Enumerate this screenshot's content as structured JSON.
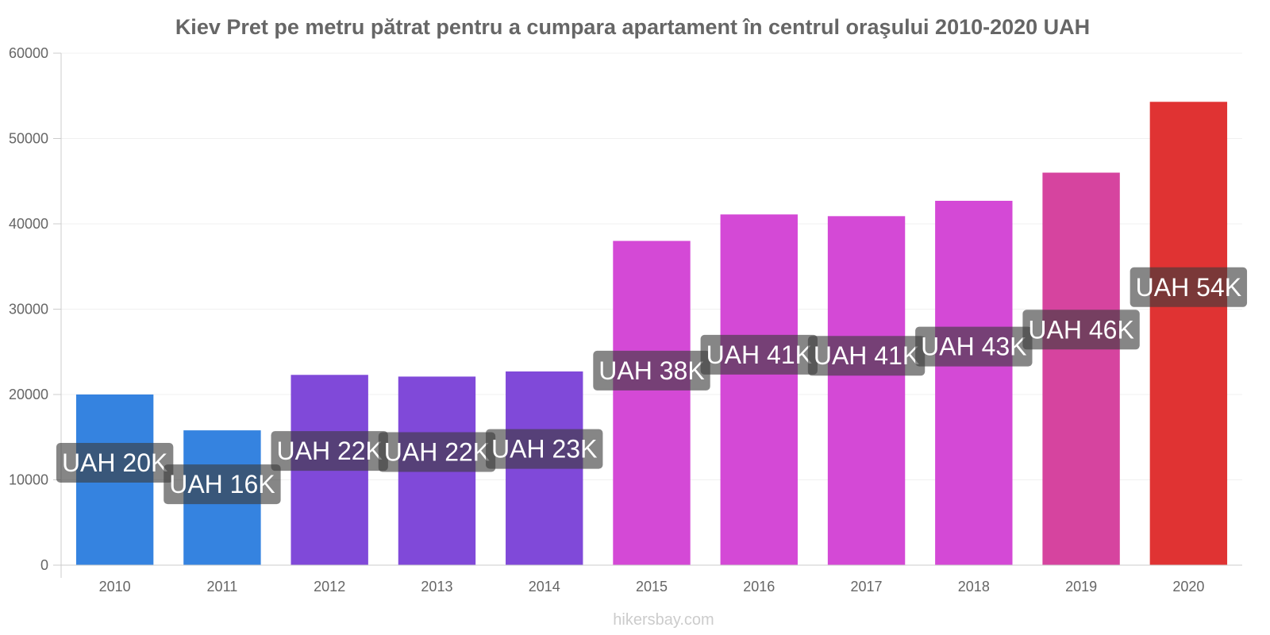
{
  "chart_data": {
    "type": "bar",
    "title": "Kiev Pret pe metru pătrat pentru a cumpara apartament în centrul oraşului 2010-2020 UAH",
    "categories": [
      "2010",
      "2011",
      "2012",
      "2013",
      "2014",
      "2015",
      "2016",
      "2017",
      "2018",
      "2019",
      "2020"
    ],
    "values": [
      20000,
      15800,
      22300,
      22100,
      22700,
      38000,
      41100,
      40900,
      42700,
      46000,
      54300
    ],
    "data_labels": [
      "UAH 20K",
      "UAH 16K",
      "UAH 22K",
      "UAH 22K",
      "UAH 23K",
      "UAH 38K",
      "UAH 41K",
      "UAH 41K",
      "UAH 43K",
      "UAH 46K",
      "UAH 54K"
    ],
    "bar_colors": [
      "#3583e0",
      "#3583e0",
      "#8049d9",
      "#8049d9",
      "#8049d9",
      "#d449d6",
      "#d449d6",
      "#d449d6",
      "#d449d6",
      "#d6449f",
      "#e03333"
    ],
    "yticks": [
      "0",
      "10000",
      "20000",
      "30000",
      "40000",
      "50000",
      "60000"
    ],
    "ylim": [
      0,
      60000
    ],
    "grid": true,
    "xlabel": "",
    "ylabel": ""
  },
  "footer": "hikersbay.com"
}
